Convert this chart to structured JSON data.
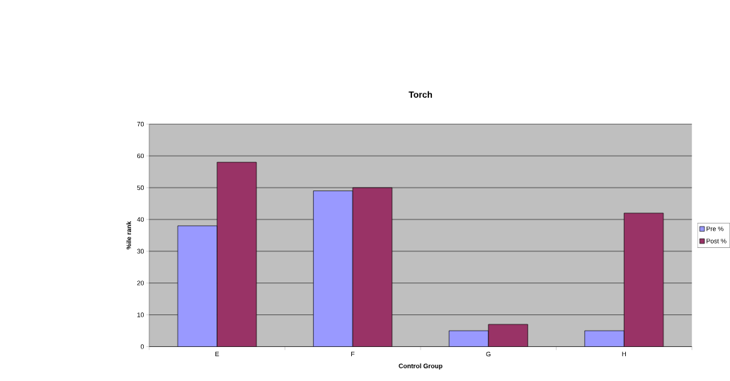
{
  "chart_data": {
    "type": "bar",
    "title": "Torch",
    "xlabel": "Control Group",
    "ylabel": "%ile rank",
    "categories": [
      "E",
      "F",
      "G",
      "H"
    ],
    "series": [
      {
        "name": "Pre %",
        "color": "#9999ff",
        "values": [
          38,
          49,
          5,
          5
        ]
      },
      {
        "name": "Post %",
        "color": "#993366",
        "values": [
          58,
          50,
          7,
          42
        ]
      }
    ],
    "ylim": [
      0,
      70
    ],
    "yticks": [
      0,
      10,
      20,
      30,
      40,
      50,
      60,
      70
    ],
    "grid": "y",
    "legend": "right"
  }
}
